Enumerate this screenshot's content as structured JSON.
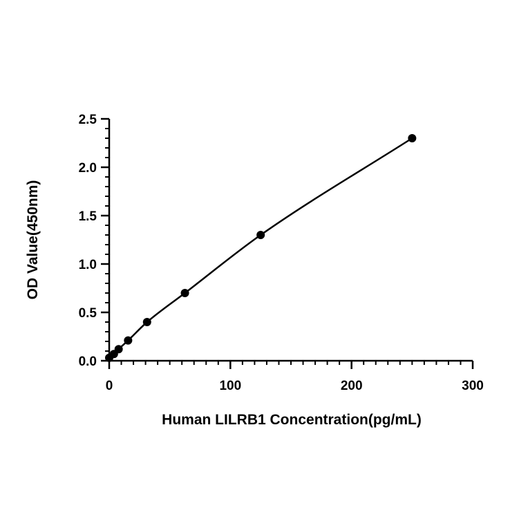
{
  "chart_data": {
    "type": "scatter",
    "title": "",
    "xlabel": "Human LILRB1 Concentration(pg/mL)",
    "ylabel": "OD Value(450nm)",
    "xlim": [
      0,
      300
    ],
    "ylim": [
      0,
      2.5
    ],
    "xticks": [
      0,
      100,
      200,
      300
    ],
    "xtick_labels": [
      "0",
      "100",
      "200",
      "300"
    ],
    "yticks": [
      0,
      0.5,
      1.0,
      1.5,
      2.0,
      2.5
    ],
    "ytick_labels": [
      "0.0",
      "0.5",
      "1.0",
      "1.5",
      "2.0",
      "2.5"
    ],
    "x_minor_step": 10,
    "y_minor_step": 0.1,
    "grid": false,
    "series": [
      {
        "x": [
          0,
          3.9,
          7.8,
          15.6,
          31.25,
          62.5,
          125,
          250
        ],
        "y": [
          0.03,
          0.07,
          0.12,
          0.21,
          0.4,
          0.7,
          1.3,
          2.3
        ],
        "fit_curve": true,
        "color": "#000000"
      }
    ]
  }
}
